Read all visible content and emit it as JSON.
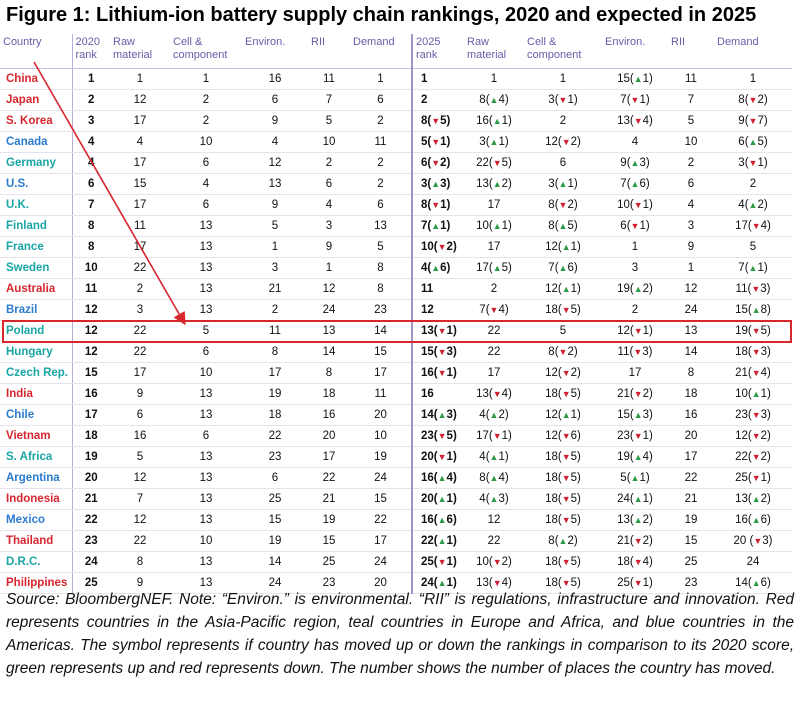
{
  "title": "Figure 1: Lithium-ion battery supply chain rankings, 2020 and expected in 2025",
  "colors": {
    "asia_pacific": "#d6262e",
    "europe_africa": "#1aa5a5",
    "americas": "#2b7bcc",
    "up": "#2e9a46",
    "down": "#d0202f",
    "header": "#6b5aa8"
  },
  "chart_data": {
    "type": "table",
    "highlighted_row": "Poland",
    "columns": [
      "Country",
      "2020 rank",
      "Raw material",
      "Cell & component",
      "Environ.",
      "RII",
      "Demand",
      "2025 rank",
      "Raw material",
      "Cell & component",
      "Environ.",
      "RII",
      "Demand"
    ],
    "rows": [
      {
        "country": "China",
        "region": "asia",
        "r2020": [
          "1",
          "1",
          "1",
          "16",
          "11",
          "1"
        ],
        "r2025": [
          "1",
          "1",
          "1",
          "15(▲1)",
          "11",
          "1"
        ]
      },
      {
        "country": "Japan",
        "region": "asia",
        "r2020": [
          "2",
          "12",
          "2",
          "6",
          "7",
          "6"
        ],
        "r2025": [
          "2",
          "8(▲4)",
          "3(▼1)",
          "7(▼1)",
          "7",
          "8(▼2)"
        ]
      },
      {
        "country": "S. Korea",
        "region": "asia",
        "r2020": [
          "3",
          "17",
          "2",
          "9",
          "5",
          "2"
        ],
        "r2025": [
          "8(▼5)",
          "16(▲1)",
          "2",
          "13(▼4)",
          "5",
          "9(▼7)"
        ]
      },
      {
        "country": "Canada",
        "region": "amer",
        "r2020": [
          "4",
          "4",
          "10",
          "4",
          "10",
          "11"
        ],
        "r2025": [
          "5(▼1)",
          "3(▲1)",
          "12(▼2)",
          "4",
          "10",
          "6(▲5)"
        ]
      },
      {
        "country": "Germany",
        "region": "eur",
        "r2020": [
          "4",
          "17",
          "6",
          "12",
          "2",
          "2"
        ],
        "r2025": [
          "6(▼2)",
          "22(▼5)",
          "6",
          "9(▲3)",
          "2",
          "3(▼1)"
        ]
      },
      {
        "country": "U.S.",
        "region": "amer",
        "r2020": [
          "6",
          "15",
          "4",
          "13",
          "6",
          "2"
        ],
        "r2025": [
          "3(▲3)",
          "13(▲2)",
          "3(▲1)",
          "7(▲6)",
          "6",
          "2"
        ]
      },
      {
        "country": "U.K.",
        "region": "eur",
        "r2020": [
          "7",
          "17",
          "6",
          "9",
          "4",
          "6"
        ],
        "r2025": [
          "8(▼1)",
          "17",
          "8(▼2)",
          "10(▼1)",
          "4",
          "4(▲2)"
        ]
      },
      {
        "country": "Finland",
        "region": "eur",
        "r2020": [
          "8",
          "11",
          "13",
          "5",
          "3",
          "13"
        ],
        "r2025": [
          "7(▲1)",
          "10(▲1)",
          "8(▲5)",
          "6(▼1)",
          "3",
          "17(▼4)"
        ]
      },
      {
        "country": "France",
        "region": "eur",
        "r2020": [
          "8",
          "17",
          "13",
          "1",
          "9",
          "5"
        ],
        "r2025": [
          "10(▼2)",
          "17",
          "12(▲1)",
          "1",
          "9",
          "5"
        ]
      },
      {
        "country": "Sweden",
        "region": "eur",
        "r2020": [
          "10",
          "22",
          "13",
          "3",
          "1",
          "8"
        ],
        "r2025": [
          "4(▲6)",
          "17(▲5)",
          "7(▲6)",
          "3",
          "1",
          "7(▲1)"
        ]
      },
      {
        "country": "Australia",
        "region": "asia",
        "r2020": [
          "11",
          "2",
          "13",
          "21",
          "12",
          "8"
        ],
        "r2025": [
          "11",
          "2",
          "12(▲1)",
          "19(▲2)",
          "12",
          "11(▼3)"
        ]
      },
      {
        "country": "Brazil",
        "region": "amer",
        "r2020": [
          "12",
          "3",
          "13",
          "2",
          "24",
          "23"
        ],
        "r2025": [
          "12",
          "7(▼4)",
          "18(▼5)",
          "2",
          "24",
          "15(▲8)"
        ]
      },
      {
        "country": "Poland",
        "region": "eur",
        "r2020": [
          "12",
          "22",
          "5",
          "11",
          "13",
          "14"
        ],
        "r2025": [
          "13(▼1)",
          "22",
          "5",
          "12(▼1)",
          "13",
          "19(▼5)"
        ]
      },
      {
        "country": "Hungary",
        "region": "eur",
        "r2020": [
          "12",
          "22",
          "6",
          "8",
          "14",
          "15"
        ],
        "r2025": [
          "15(▼3)",
          "22",
          "8(▼2)",
          "11(▼3)",
          "14",
          "18(▼3)"
        ]
      },
      {
        "country": "Czech Rep.",
        "region": "eur",
        "r2020": [
          "15",
          "17",
          "10",
          "17",
          "8",
          "17"
        ],
        "r2025": [
          "16(▼1)",
          "17",
          "12(▼2)",
          "17",
          "8",
          "21(▼4)"
        ]
      },
      {
        "country": "India",
        "region": "asia",
        "r2020": [
          "16",
          "9",
          "13",
          "19",
          "18",
          "11"
        ],
        "r2025": [
          "16",
          "13(▼4)",
          "18(▼5)",
          "21(▼2)",
          "18",
          "10(▲1)"
        ]
      },
      {
        "country": "Chile",
        "region": "amer",
        "r2020": [
          "17",
          "6",
          "13",
          "18",
          "16",
          "20"
        ],
        "r2025": [
          "14(▲3)",
          "4(▲2)",
          "12(▲1)",
          "15(▲3)",
          "16",
          "23(▼3)"
        ]
      },
      {
        "country": "Vietnam",
        "region": "asia",
        "r2020": [
          "18",
          "16",
          "6",
          "22",
          "20",
          "10"
        ],
        "r2025": [
          "23(▼5)",
          "17(▼1)",
          "12(▼6)",
          "23(▼1)",
          "20",
          "12(▼2)"
        ]
      },
      {
        "country": "S. Africa",
        "region": "eur",
        "r2020": [
          "19",
          "5",
          "13",
          "23",
          "17",
          "19"
        ],
        "r2025": [
          "20(▼1)",
          "4(▲1)",
          "18(▼5)",
          "19(▲4)",
          "17",
          "22(▼2)"
        ]
      },
      {
        "country": "Argentina",
        "region": "amer",
        "r2020": [
          "20",
          "12",
          "13",
          "6",
          "22",
          "24"
        ],
        "r2025": [
          "16(▲4)",
          "8(▲4)",
          "18(▼5)",
          "5(▲1)",
          "22",
          "25(▼1)"
        ]
      },
      {
        "country": "Indonesia",
        "region": "asia",
        "r2020": [
          "21",
          "7",
          "13",
          "25",
          "21",
          "15"
        ],
        "r2025": [
          "20(▲1)",
          "4(▲3)",
          "18(▼5)",
          "24(▲1)",
          "21",
          "13(▲2)"
        ]
      },
      {
        "country": "Mexico",
        "region": "amer",
        "r2020": [
          "22",
          "12",
          "13",
          "15",
          "19",
          "22"
        ],
        "r2025": [
          "16(▲6)",
          "12",
          "18(▼5)",
          "13(▲2)",
          "19",
          "16(▲6)"
        ]
      },
      {
        "country": "Thailand",
        "region": "asia",
        "r2020": [
          "23",
          "22",
          "10",
          "19",
          "15",
          "17"
        ],
        "r2025": [
          "22(▲1)",
          "22",
          "8(▲2)",
          "21(▼2)",
          "15",
          "20 (▼3)"
        ]
      },
      {
        "country": "D.R.C.",
        "region": "eur",
        "r2020": [
          "24",
          "8",
          "13",
          "14",
          "25",
          "24"
        ],
        "r2025": [
          "25(▼1)",
          "10(▼2)",
          "18(▼5)",
          "18(▼4)",
          "25",
          "24"
        ]
      },
      {
        "country": "Philippines",
        "region": "asia",
        "r2020": [
          "25",
          "9",
          "13",
          "24",
          "23",
          "20"
        ],
        "r2025": [
          "24(▲1)",
          "13(▼4)",
          "18(▼5)",
          "25(▼1)",
          "23",
          "14(▲6)"
        ]
      }
    ]
  },
  "header": {
    "country": "Country",
    "rank2020": "2020 rank",
    "raw1": "Raw material",
    "cell1": "Cell & component",
    "env1": "Environ.",
    "rii1": "RII",
    "demand1": "Demand",
    "rank2025": "2025 rank",
    "raw2": "Raw material",
    "cell2": "Cell & component",
    "env2": "Environ.",
    "rii2": "RII",
    "demand2": "Demand"
  },
  "source": "Source: BloombergNEF. Note: “Environ.” is environmental. “RII” is regulations, infrastructure and innovation. Red represents countries in the Asia-Pacific region, teal countries in Europe and Africa, and blue countries in the Americas. The symbol represents if country has moved up or down the rankings in comparison to its 2020 score, green represents up and red represents down. The number shows the number of places the country has moved."
}
